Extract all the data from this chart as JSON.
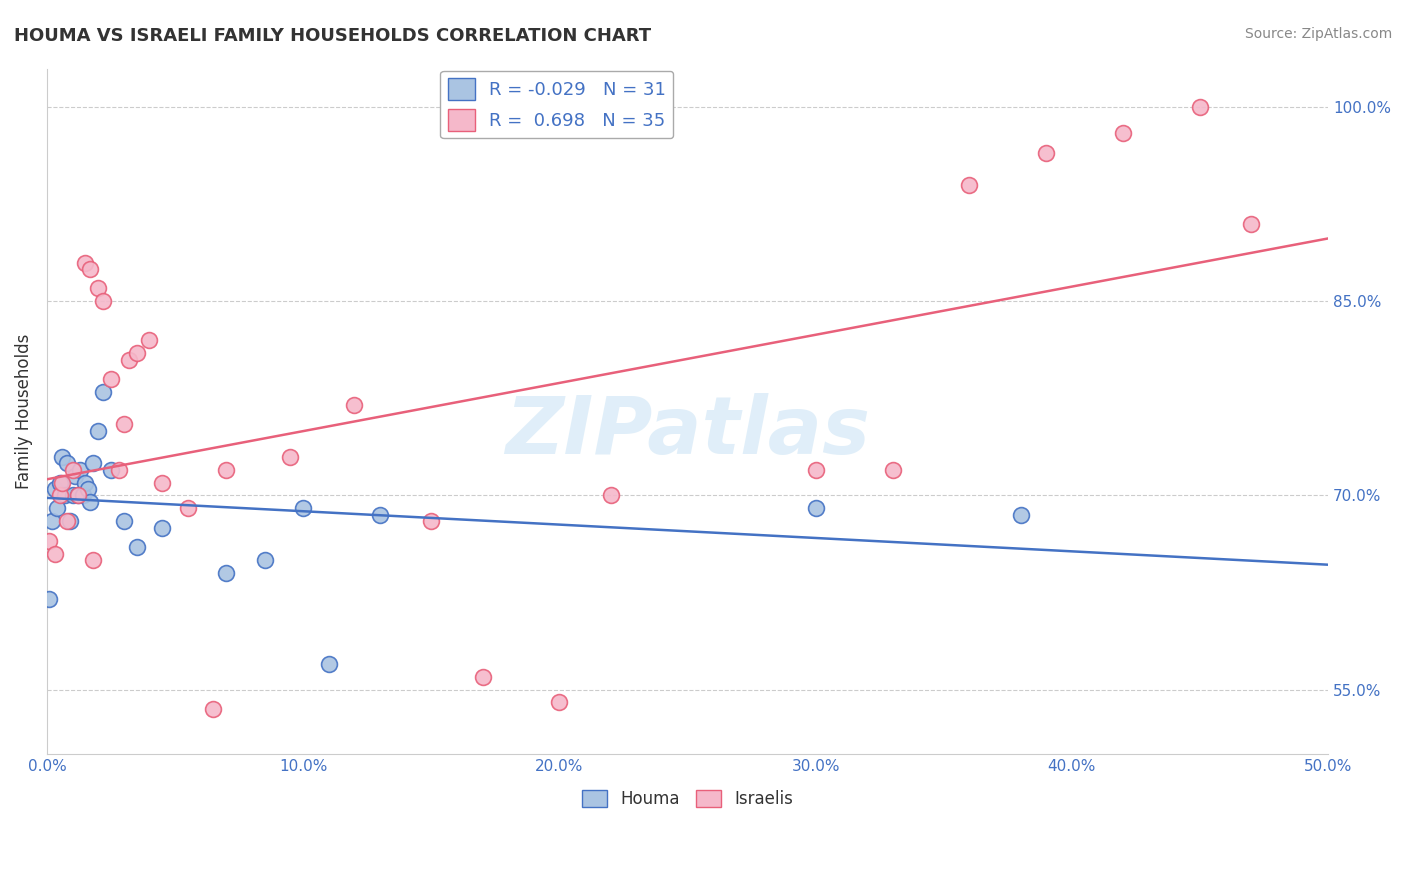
{
  "title": "HOUMA VS ISRAELI FAMILY HOUSEHOLDS CORRELATION CHART",
  "source": "Source: ZipAtlas.com",
  "ylabel": "Family Households",
  "watermark": "ZIPatlas",
  "R_houma": -0.029,
  "N_houma": 31,
  "R_israeli": 0.698,
  "N_israeli": 35,
  "xlim": [
    0.0,
    50.0
  ],
  "ylim": [
    50.0,
    103.0
  ],
  "yticks": [
    55.0,
    70.0,
    85.0,
    100.0
  ],
  "ytick_labels": [
    "55.0%",
    "70.0%",
    "85.0%",
    "100.0%"
  ],
  "xticks": [
    0,
    10,
    20,
    30,
    40,
    50
  ],
  "xtick_labels": [
    "0.0%",
    "10.0%",
    "20.0%",
    "30.0%",
    "40.0%",
    "50.0%"
  ],
  "houma_color": "#aac4e2",
  "houma_edge_color": "#4472c4",
  "israeli_color": "#f5b8ca",
  "israeli_edge_color": "#e8607a",
  "houma_line_color": "#4472c4",
  "israeli_line_color": "#e8607a",
  "houma_x": [
    0.1,
    0.2,
    0.3,
    0.4,
    0.5,
    0.6,
    0.7,
    0.8,
    0.9,
    1.0,
    1.1,
    1.2,
    1.3,
    1.4,
    1.5,
    1.6,
    1.7,
    1.8,
    2.0,
    2.2,
    2.5,
    3.0,
    3.5,
    4.5,
    7.0,
    8.5,
    10.0,
    11.0,
    13.0,
    30.0,
    38.0
  ],
  "houma_y": [
    62.0,
    68.0,
    70.5,
    69.0,
    71.0,
    73.0,
    70.0,
    72.5,
    68.0,
    70.0,
    71.5,
    70.0,
    72.0,
    70.0,
    71.0,
    70.5,
    69.5,
    72.5,
    75.0,
    78.0,
    72.0,
    68.0,
    66.0,
    67.5,
    64.0,
    65.0,
    69.0,
    57.0,
    68.5,
    69.0,
    68.5
  ],
  "israeli_x": [
    0.1,
    0.3,
    0.5,
    0.8,
    1.0,
    1.2,
    1.5,
    1.7,
    2.0,
    2.2,
    2.5,
    2.8,
    3.0,
    3.2,
    3.5,
    4.0,
    4.5,
    5.5,
    7.0,
    9.5,
    12.0,
    15.0,
    17.0,
    20.0,
    22.0,
    30.0,
    33.0,
    36.0,
    39.0,
    42.0,
    45.0,
    47.0,
    0.6,
    1.8,
    6.5
  ],
  "israeli_y": [
    66.5,
    65.5,
    70.0,
    68.0,
    72.0,
    70.0,
    88.0,
    87.5,
    86.0,
    85.0,
    79.0,
    72.0,
    75.5,
    80.5,
    81.0,
    82.0,
    71.0,
    69.0,
    72.0,
    73.0,
    77.0,
    68.0,
    56.0,
    54.0,
    70.0,
    72.0,
    72.0,
    94.0,
    96.5,
    98.0,
    100.0,
    91.0,
    71.0,
    65.0,
    53.5
  ],
  "title_color": "#333333",
  "source_color": "#888888",
  "grid_color": "#cccccc",
  "background_color": "#ffffff",
  "legend_fontsize": 13,
  "title_fontsize": 13,
  "tick_color": "#4472c4"
}
